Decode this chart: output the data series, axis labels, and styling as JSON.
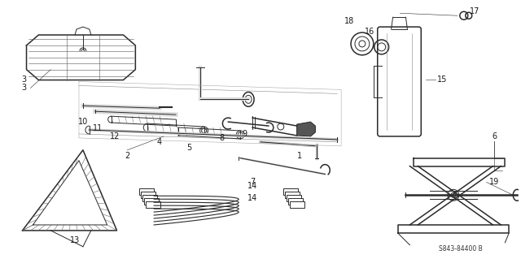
{
  "background_color": "#ffffff",
  "diagram_code": "S843-84400 B",
  "fig_width": 6.4,
  "fig_height": 3.19,
  "dpi": 100,
  "line_color": "#2a2a2a",
  "label_color": "#1a1a1a",
  "label_fontsize": 7.0
}
